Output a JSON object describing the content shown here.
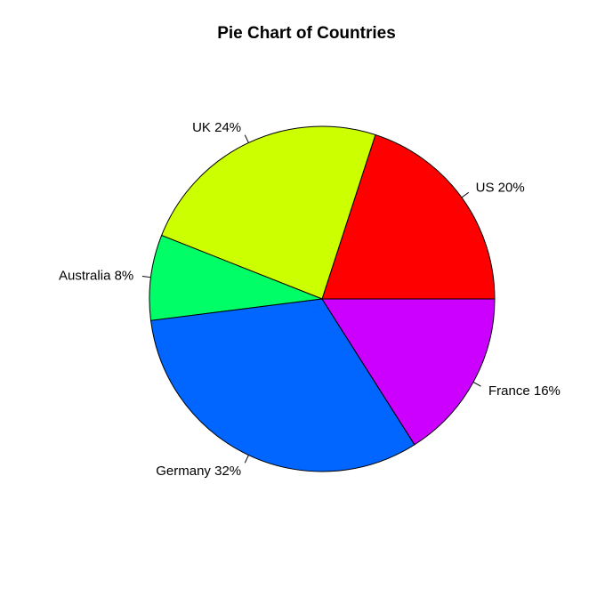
{
  "chart_data": {
    "type": "pie",
    "title": "Pie Chart of Countries",
    "start": "3 o'clock",
    "direction": "counterclockwise",
    "slices": [
      {
        "label": "US 20%",
        "category": "US",
        "value": 20,
        "color": "#FF0000"
      },
      {
        "label": "UK 24%",
        "category": "UK",
        "value": 24,
        "color": "#CCFF00"
      },
      {
        "label": "Australia 8%",
        "category": "Australia",
        "value": 8,
        "color": "#00FF66"
      },
      {
        "label": "Germany 32%",
        "category": "Germany",
        "value": 32,
        "color": "#0066FF"
      },
      {
        "label": "France 16%",
        "category": "France",
        "value": 16,
        "color": "#CC00FF"
      }
    ]
  }
}
